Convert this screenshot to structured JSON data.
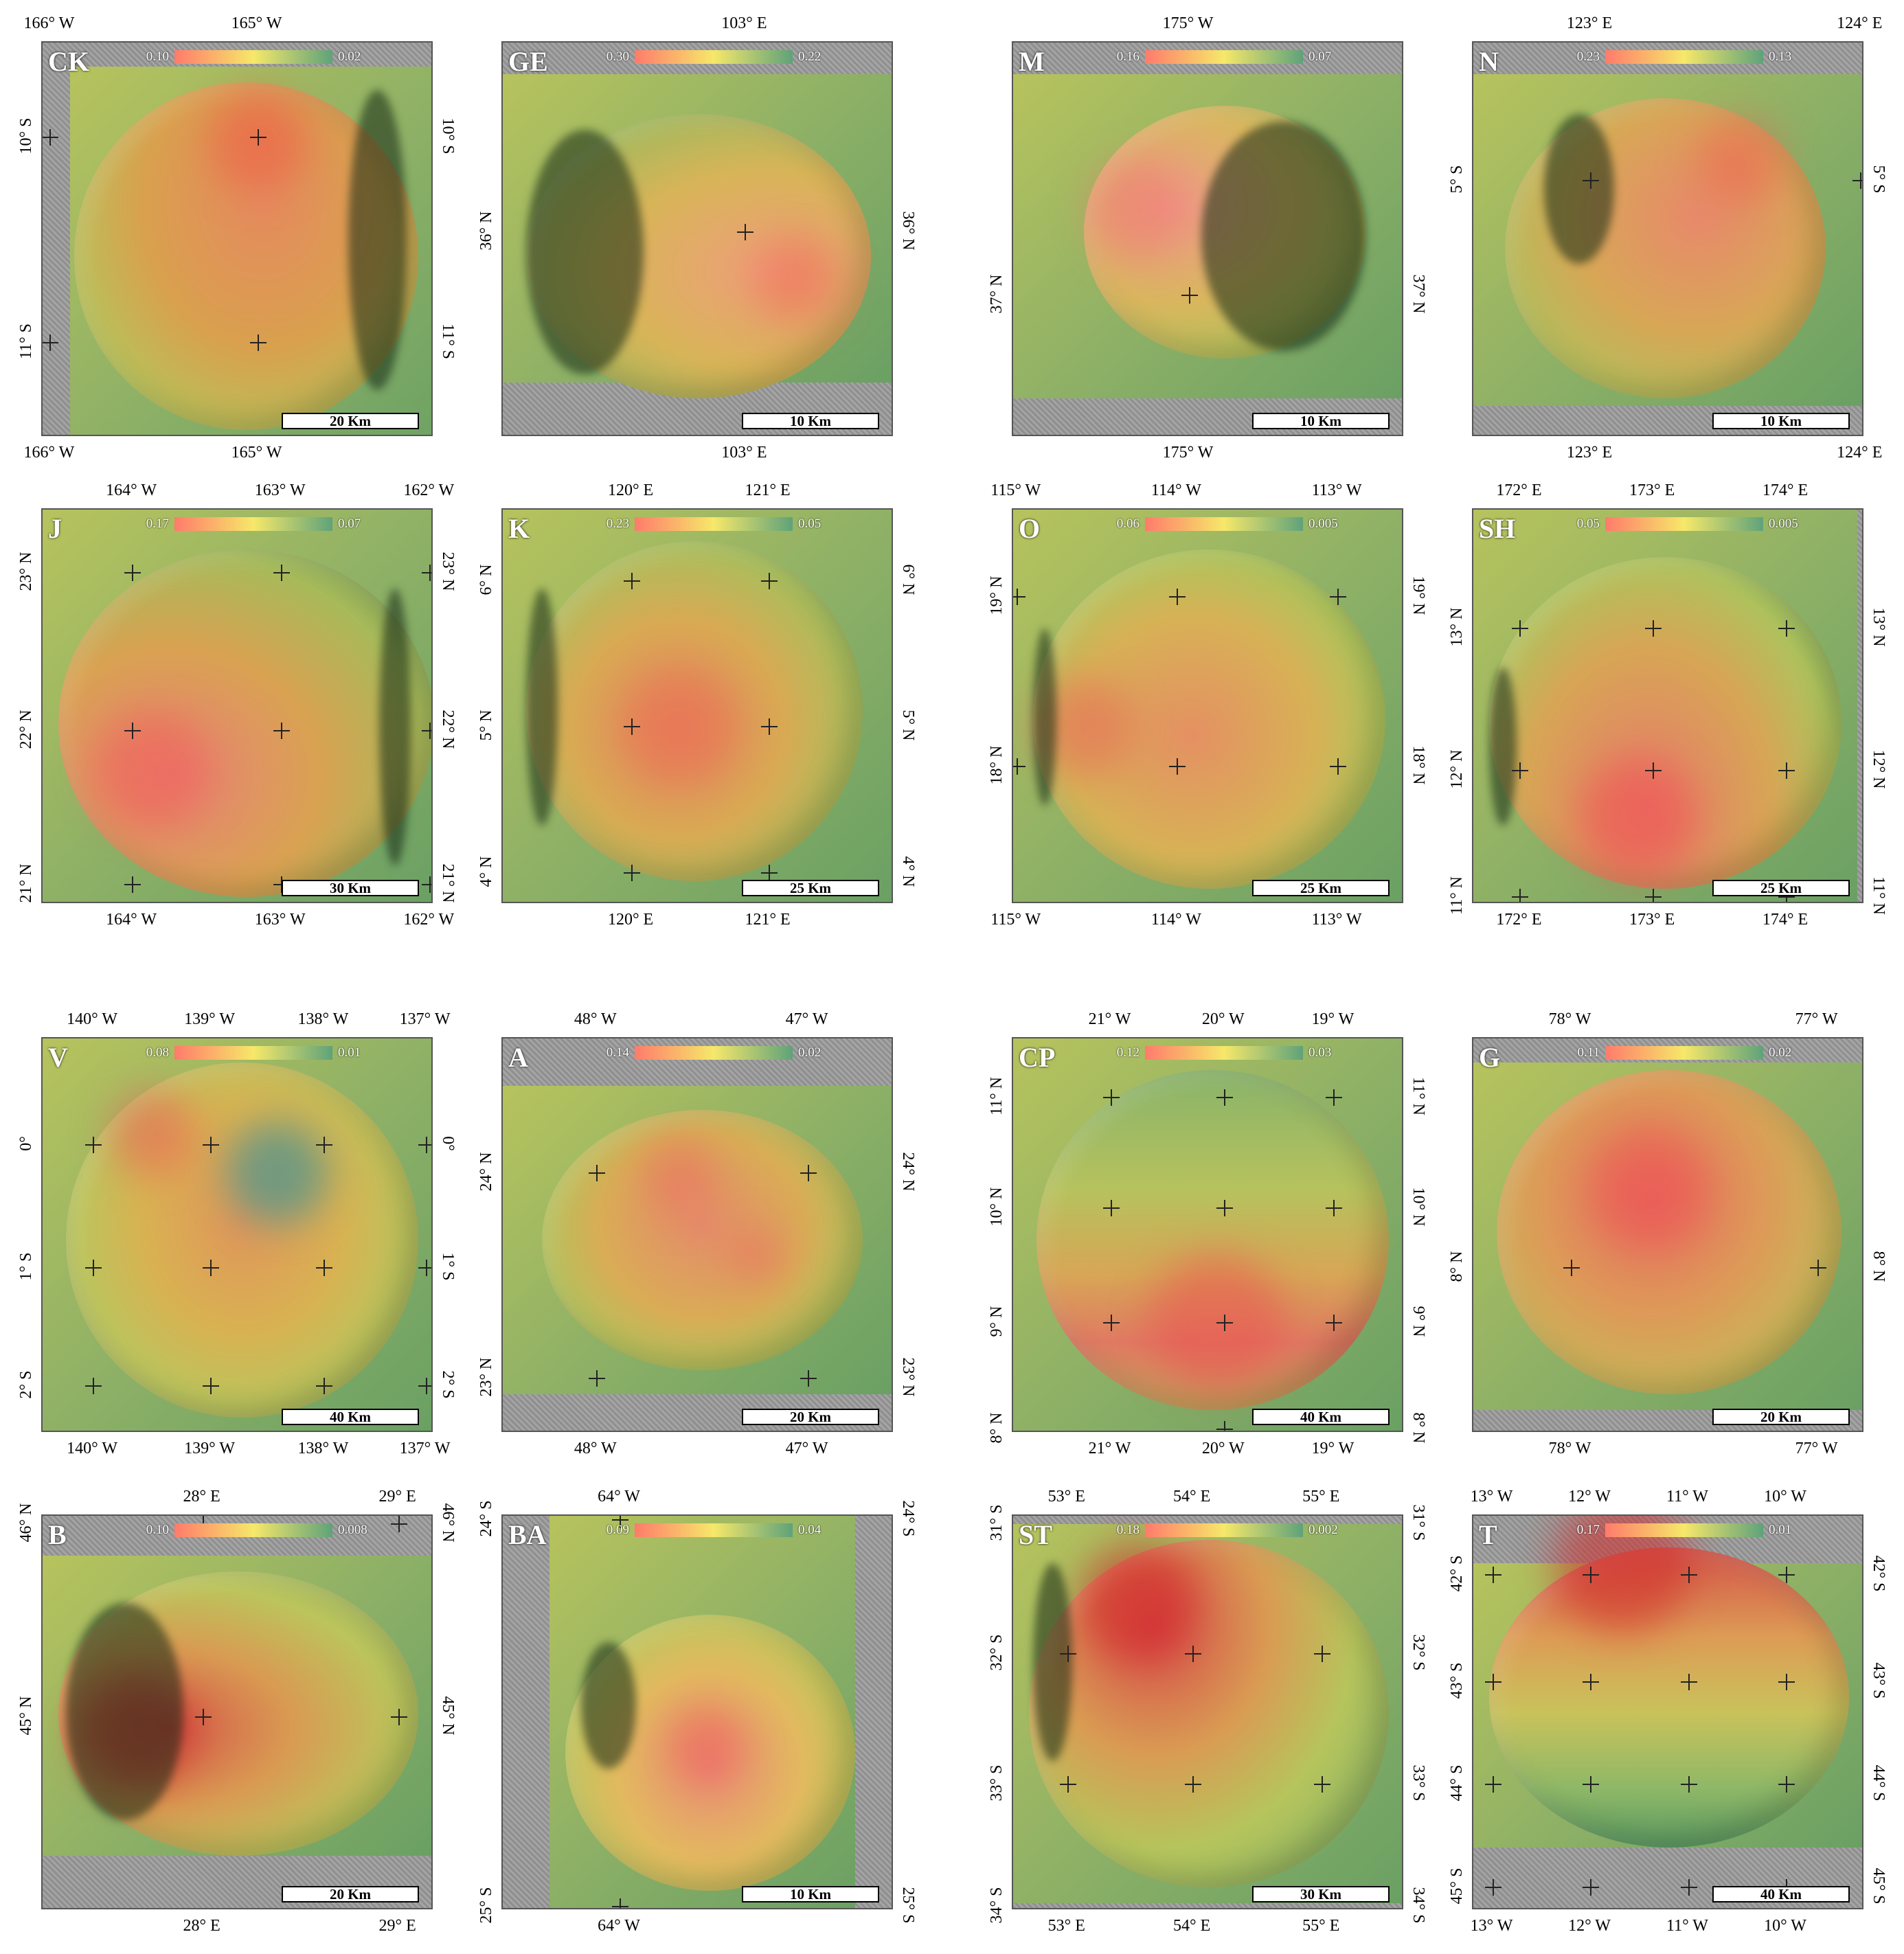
{
  "panels": [
    {
      "id": "CK",
      "legend_min": "0.10",
      "legend_max": "0.02",
      "scale": "20 Km",
      "top_ticks": [
        "166° W",
        "165° W"
      ],
      "bottom_ticks": [
        "166° W",
        "165° W"
      ],
      "left_ticks": [
        "10° S",
        "11° S"
      ],
      "right_ticks": [
        "10° S",
        "11° S"
      ]
    },
    {
      "id": "GE",
      "legend_min": "0.30",
      "legend_max": "0.22",
      "scale": "10 Km",
      "top_ticks": [
        "103° E"
      ],
      "bottom_ticks": [
        "103° E"
      ],
      "left_ticks": [
        "36° N"
      ],
      "right_ticks": [
        "36° N"
      ]
    },
    {
      "id": "M",
      "legend_min": "0.16",
      "legend_max": "0.07",
      "scale": "10 Km",
      "top_ticks": [
        "175° W"
      ],
      "bottom_ticks": [
        "175° W"
      ],
      "left_ticks": [
        "37° N"
      ],
      "right_ticks": [
        "37° N"
      ]
    },
    {
      "id": "N",
      "legend_min": "0.23",
      "legend_max": "0.13",
      "scale": "10 Km",
      "top_ticks": [
        "123° E",
        "124° E"
      ],
      "bottom_ticks": [
        "123° E",
        "124° E"
      ],
      "left_ticks": [
        "5° S"
      ],
      "right_ticks": [
        "5° S"
      ]
    },
    {
      "id": "J",
      "legend_min": "0.17",
      "legend_max": "0.07",
      "scale": "30 Km",
      "top_ticks": [
        "164° W",
        "163° W",
        "162° W"
      ],
      "bottom_ticks": [
        "164° W",
        "163° W",
        "162° W"
      ],
      "left_ticks": [
        "23° N",
        "22° N",
        "21° N"
      ],
      "right_ticks": [
        "23° N",
        "22° N",
        "21° N"
      ]
    },
    {
      "id": "K",
      "legend_min": "0.23",
      "legend_max": "0.05",
      "scale": "25 Km",
      "top_ticks": [
        "120° E",
        "121° E"
      ],
      "bottom_ticks": [
        "120° E",
        "121° E"
      ],
      "left_ticks": [
        "6° N",
        "5° N",
        "4° N"
      ],
      "right_ticks": [
        "6° N",
        "5° N",
        "4° N"
      ]
    },
    {
      "id": "O",
      "legend_min": "0.06",
      "legend_max": "0.005",
      "scale": "25 Km",
      "top_ticks": [
        "115° W",
        "114° W",
        "113° W"
      ],
      "bottom_ticks": [
        "115° W",
        "114° W",
        "113° W"
      ],
      "left_ticks": [
        "19° N",
        "18° N"
      ],
      "right_ticks": [
        "19° N",
        "18° N"
      ]
    },
    {
      "id": "SH",
      "legend_min": "0.05",
      "legend_max": "0.005",
      "scale": "25 Km",
      "top_ticks": [
        "172° E",
        "173° E",
        "174° E"
      ],
      "bottom_ticks": [
        "172° E",
        "173° E",
        "174° E"
      ],
      "left_ticks": [
        "13° N",
        "12° N",
        "11° N"
      ],
      "right_ticks": [
        "13° N",
        "12° N",
        "11° N"
      ]
    },
    {
      "id": "V",
      "legend_min": "0.08",
      "legend_max": "0.01",
      "scale": "40 Km",
      "top_ticks": [
        "140° W",
        "139° W",
        "138° W",
        "137° W"
      ],
      "bottom_ticks": [
        "140° W",
        "139° W",
        "138° W",
        "137° W"
      ],
      "left_ticks": [
        "0°",
        "1° S",
        "2° S"
      ],
      "right_ticks": [
        "0°",
        "1° S",
        "2° S"
      ]
    },
    {
      "id": "A",
      "legend_min": "0.14",
      "legend_max": "0.02",
      "scale": "20 Km",
      "top_ticks": [
        "48° W",
        "47° W"
      ],
      "bottom_ticks": [
        "48° W",
        "47° W"
      ],
      "left_ticks": [
        "24° N",
        "23° N"
      ],
      "right_ticks": [
        "24° N",
        "23° N"
      ]
    },
    {
      "id": "CP",
      "legend_min": "0.12",
      "legend_max": "0.03",
      "scale": "40 Km",
      "top_ticks": [
        "21° W",
        "20° W",
        "19° W"
      ],
      "bottom_ticks": [
        "21° W",
        "20° W",
        "19° W"
      ],
      "left_ticks": [
        "11° N",
        "10° N",
        "9° N",
        "8° N"
      ],
      "right_ticks": [
        "11° N",
        "10° N",
        "9° N",
        "8° N"
      ]
    },
    {
      "id": "G",
      "legend_min": "0.11",
      "legend_max": "0.02",
      "scale": "20 Km",
      "top_ticks": [
        "78° W",
        "77° W"
      ],
      "bottom_ticks": [
        "78° W",
        "77° W"
      ],
      "left_ticks": [
        "8° N"
      ],
      "right_ticks": [
        "8° N"
      ]
    },
    {
      "id": "B",
      "legend_min": "0.10",
      "legend_max": "0.008",
      "scale": "20 Km",
      "top_ticks": [
        "28° E",
        "29° E"
      ],
      "bottom_ticks": [
        "28° E",
        "29° E"
      ],
      "left_ticks": [
        "46° N",
        "45° N"
      ],
      "right_ticks": [
        "46° N",
        "45° N"
      ]
    },
    {
      "id": "BA",
      "legend_min": "0.09",
      "legend_max": "0.04",
      "scale": "10 Km",
      "top_ticks": [
        "64° W"
      ],
      "bottom_ticks": [
        "64° W"
      ],
      "left_ticks": [
        "24° S",
        "25° S"
      ],
      "right_ticks": [
        "24° S",
        "25° S"
      ]
    },
    {
      "id": "ST",
      "legend_min": "0.18",
      "legend_max": "0.002",
      "scale": "30 Km",
      "top_ticks": [
        "53° E",
        "54° E",
        "55° E"
      ],
      "bottom_ticks": [
        "53° E",
        "54° E",
        "55° E"
      ],
      "left_ticks": [
        "31° S",
        "32° S",
        "33° S",
        "34° S"
      ],
      "right_ticks": [
        "31° S",
        "32° S",
        "33° S",
        "34° S"
      ]
    },
    {
      "id": "T",
      "legend_min": "0.17",
      "legend_max": "0.01",
      "scale": "40 Km",
      "top_ticks": [
        "13° W",
        "12° W",
        "11° W",
        "10° W"
      ],
      "bottom_ticks": [
        "13° W",
        "12° W",
        "11° W",
        "10° W"
      ],
      "left_ticks": [
        "42° S",
        "43° S",
        "44° S",
        "45° S"
      ],
      "right_ticks": [
        "42° S",
        "43° S",
        "44° S",
        "45° S"
      ]
    }
  ]
}
